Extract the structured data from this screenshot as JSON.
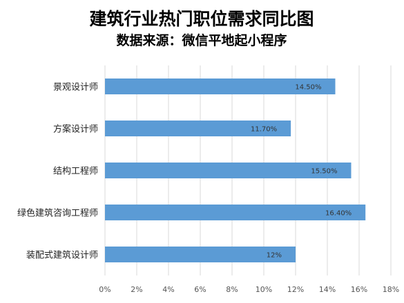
{
  "chart_data": {
    "type": "bar",
    "orientation": "horizontal",
    "title": "建筑行业热门职位需求同比图",
    "subtitle": "数据来源：微信平地起小程序",
    "categories": [
      "景观设计师",
      "方案设计师",
      "结构工程师",
      "绿色建筑咨询工程师",
      "装配式建筑设计师"
    ],
    "values": [
      14.5,
      11.7,
      15.5,
      16.4,
      12
    ],
    "data_labels": [
      "14.50%",
      "11.70%",
      "15.50%",
      "16.40%",
      "12%"
    ],
    "xlim": [
      0,
      18
    ],
    "x_ticks": [
      "0%",
      "2%",
      "4%",
      "6%",
      "8%",
      "10%",
      "12%",
      "14%",
      "16%",
      "18%"
    ],
    "xlabel": "",
    "ylabel": "",
    "grid": true,
    "legend": "none",
    "bar_color": "#5b9bd5"
  }
}
